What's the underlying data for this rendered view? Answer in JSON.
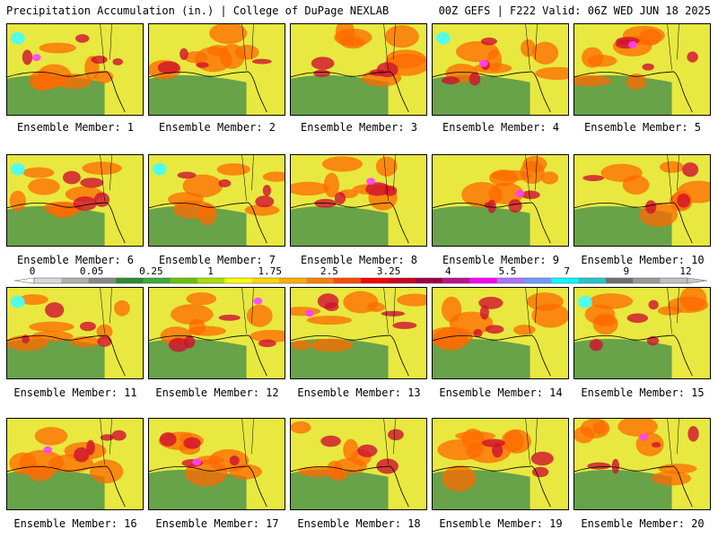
{
  "header": {
    "left": "Precipitation Accumulation (in.) | College of DuPage NEXLAB",
    "right": "00Z GEFS | F222 Valid: 06Z WED JUN 18 2025"
  },
  "members": [
    "Ensemble Member: 1",
    "Ensemble Member: 2",
    "Ensemble Member: 3",
    "Ensemble Member: 4",
    "Ensemble Member: 5",
    "Ensemble Member: 6",
    "Ensemble Member: 7",
    "Ensemble Member: 8",
    "Ensemble Member: 9",
    "Ensemble Member: 10",
    "Ensemble Member: 11",
    "Ensemble Member: 12",
    "Ensemble Member: 13",
    "Ensemble Member: 14",
    "Ensemble Member: 15",
    "Ensemble Member: 16",
    "Ensemble Member: 17",
    "Ensemble Member: 18",
    "Ensemble Member: 19",
    "Ensemble Member: 20"
  ],
  "colorbar": {
    "labels": [
      "0",
      "0.05",
      "0.25",
      "1",
      "1.75",
      "2.5",
      "3.25",
      "4",
      "5.5",
      "7",
      "9",
      "12"
    ],
    "colors": [
      "#d8d8d8",
      "#b0b0b0",
      "#888888",
      "#2e8b2e",
      "#3ca83c",
      "#66c400",
      "#a8e000",
      "#ffff00",
      "#ffd700",
      "#ffae00",
      "#ff7f00",
      "#ff4a00",
      "#ff0000",
      "#d00020",
      "#a00040",
      "#c0108c",
      "#ff00ff",
      "#b070ff",
      "#6f9bff",
      "#00ffff",
      "#20c8c8",
      "#707070",
      "#9a9a9a",
      "#c0c0c0"
    ]
  },
  "palette": {
    "low": "#5a9a4a",
    "mid": "#e8e840",
    "high": "#ff6a00",
    "heavy": "#d01030",
    "extreme": "#ff40ff",
    "peak": "#40ffff"
  }
}
